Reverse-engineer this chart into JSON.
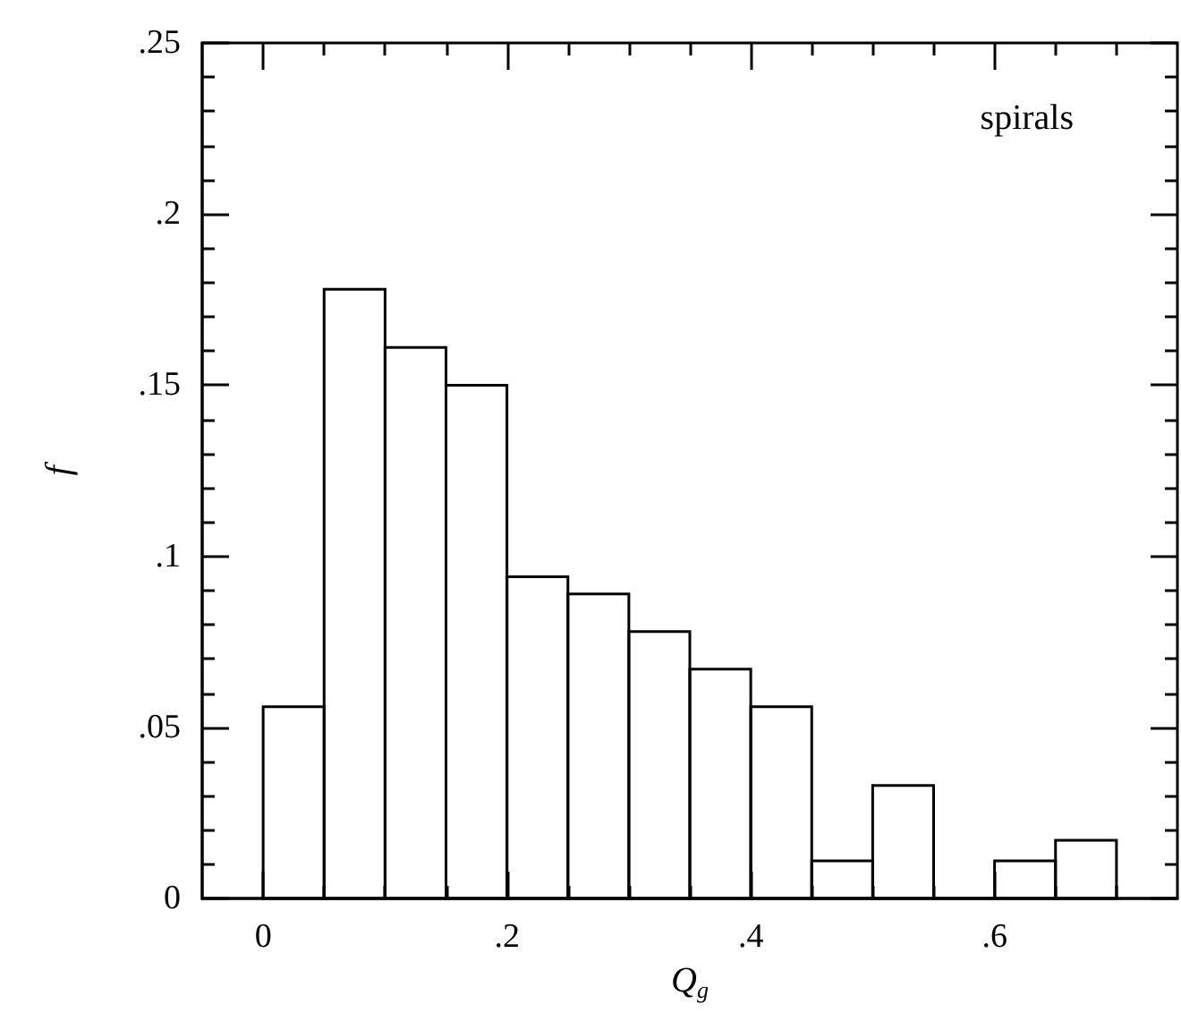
{
  "chart_data": {
    "type": "histogram",
    "bins": [
      0,
      0.05,
      0.1,
      0.15,
      0.2,
      0.25,
      0.3,
      0.35,
      0.4,
      0.45,
      0.5,
      0.55,
      0.6,
      0.65,
      0.7
    ],
    "values": [
      0.056,
      0.178,
      0.161,
      0.15,
      0.094,
      0.089,
      0.078,
      0.067,
      0.056,
      0.011,
      0.033,
      0,
      0.011,
      0.017
    ],
    "color": "#000000",
    "xlabel": "Q$_{g}$",
    "ylabel": "f",
    "annotations": [
      "spirals"
    ],
    "xlim": [
      -0.05,
      0.75
    ],
    "xticks": [
      {
        "value": 0,
        "label": "0"
      },
      {
        "value": 0.05,
        "label": null
      },
      {
        "value": 0.1,
        "label": null
      },
      {
        "value": 0.15,
        "label": null
      },
      {
        "value": 0.2,
        "label": ".2"
      },
      {
        "value": 0.25,
        "label": null
      },
      {
        "value": 0.3,
        "label": null
      },
      {
        "value": 0.35,
        "label": null
      },
      {
        "value": 0.4,
        "label": ".4"
      },
      {
        "value": 0.45,
        "label": null
      },
      {
        "value": 0.5,
        "label": null
      },
      {
        "value": 0.55,
        "label": null
      },
      {
        "value": 0.6,
        "label": ".6"
      },
      {
        "value": 0.65,
        "label": null
      },
      {
        "value": 0.7,
        "label": null
      }
    ],
    "ylim": [
      0,
      0.25
    ],
    "yticks": [
      {
        "value": 0,
        "label": "0"
      },
      {
        "value": 0.01,
        "label": null
      },
      {
        "value": 0.02,
        "label": null
      },
      {
        "value": 0.03,
        "label": null
      },
      {
        "value": 0.04,
        "label": null
      },
      {
        "value": 0.05,
        "label": ".05"
      },
      {
        "value": 0.06,
        "label": null
      },
      {
        "value": 0.07,
        "label": null
      },
      {
        "value": 0.08,
        "label": null
      },
      {
        "value": 0.09,
        "label": null
      },
      {
        "value": 0.1,
        "label": ".1"
      },
      {
        "value": 0.11,
        "label": null
      },
      {
        "value": 0.12,
        "label": null
      },
      {
        "value": 0.13,
        "label": null
      },
      {
        "value": 0.14,
        "label": null
      },
      {
        "value": 0.15,
        "label": ".15"
      },
      {
        "value": 0.16,
        "label": null
      },
      {
        "value": 0.17,
        "label": null
      },
      {
        "value": 0.18,
        "label": null
      },
      {
        "value": 0.19,
        "label": null
      },
      {
        "value": 0.2,
        "label": ".2"
      },
      {
        "value": 0.21,
        "label": null
      },
      {
        "value": 0.22,
        "label": null
      },
      {
        "value": 0.23,
        "label": null
      },
      {
        "value": 0.24,
        "label": null
      },
      {
        "value": 0.25,
        "label": ".25"
      }
    ]
  }
}
